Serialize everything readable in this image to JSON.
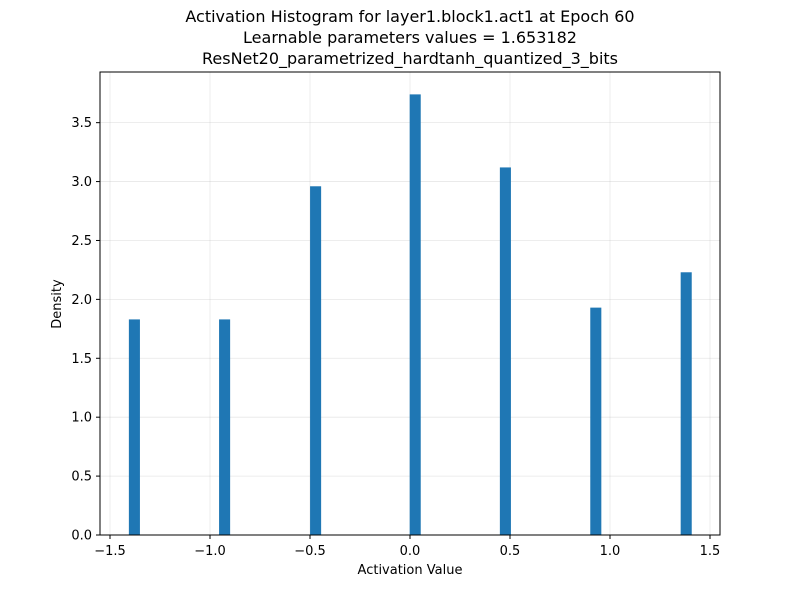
{
  "chart_data": {
    "type": "bar",
    "title_lines": [
      "Activation Histogram for layer1.block1.act1 at Epoch 60",
      "Learnable parameters values = 1.653182",
      "ResNet20_parametrized_hardtanh_quantized_3_bits"
    ],
    "xlabel": "Activation Value",
    "ylabel": "Density",
    "xlim": [
      -1.55,
      1.55
    ],
    "ylim": [
      0,
      3.93
    ],
    "xticks": [
      -1.5,
      -1.0,
      -0.5,
      0.0,
      0.5,
      1.0,
      1.5
    ],
    "xtick_labels": [
      "−1.5",
      "−1.0",
      "−0.5",
      "0.0",
      "0.5",
      "1.0",
      "1.5"
    ],
    "yticks": [
      0.0,
      0.5,
      1.0,
      1.5,
      2.0,
      2.5,
      3.0,
      3.5
    ],
    "ytick_labels": [
      "0.0",
      "0.5",
      "1.0",
      "1.5",
      "2.0",
      "2.5",
      "3.0",
      "3.5"
    ],
    "bar_width": 0.0553,
    "x": [
      -1.378,
      -0.927,
      -0.472,
      0.026,
      0.477,
      0.929,
      1.381
    ],
    "values": [
      1.83,
      1.83,
      2.96,
      3.74,
      3.12,
      1.93,
      2.23
    ],
    "grid": true,
    "legend": "none",
    "bar_color": "#1f77b4"
  }
}
